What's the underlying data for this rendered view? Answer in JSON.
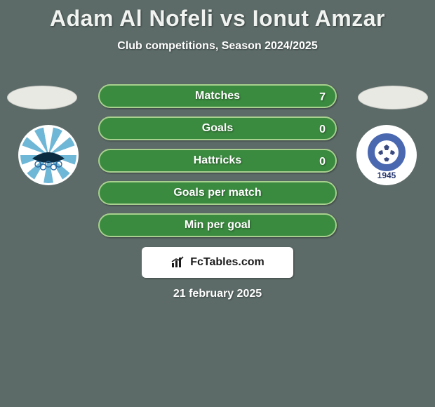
{
  "background_color": "#5c6b68",
  "title": "Adam Al Nofeli vs Ionut Amzar",
  "title_color": "#f0f3f0",
  "subtitle": "Club competitions, Season 2024/2025",
  "subtitle_color": "#ffffff",
  "stats": {
    "row_bg": "#3a8a3f",
    "row_border": "#a8d08f",
    "label_color": "#ffffff",
    "value_color": "#ffffff",
    "rows": [
      {
        "label": "Matches",
        "left": "",
        "right": "7"
      },
      {
        "label": "Goals",
        "left": "",
        "right": "0"
      },
      {
        "label": "Hattricks",
        "left": "",
        "right": "0"
      },
      {
        "label": "Goals per match",
        "left": "",
        "right": ""
      },
      {
        "label": "Min per goal",
        "left": "",
        "right": ""
      }
    ]
  },
  "player_ovals": {
    "bg": "#e9e9e4",
    "border": "#c9c9c4"
  },
  "club_left": {
    "bg": "#ffffff",
    "stripe_colors": [
      "#6fb7d6",
      "#ffffff"
    ],
    "rings_color": "#2a6aa0"
  },
  "club_right": {
    "bg": "#ffffff",
    "inner_bg": "#4a68b0",
    "ball_color": "#ffffff",
    "year": "1945",
    "year_color": "#2a3a70"
  },
  "watermark": {
    "bg": "#ffffff",
    "text": "FcTables.com",
    "text_color": "#1a1a1a",
    "icon_color": "#1a1a1a"
  },
  "date": "21 february 2025",
  "date_color": "#ffffff"
}
